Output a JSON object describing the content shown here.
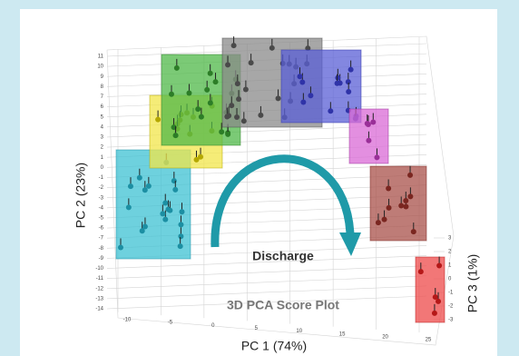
{
  "chart_data": {
    "type": "scatter3d",
    "title": "3D PCA Score Plot",
    "annotation": "Discharge",
    "xlabel": "PC 1 (74%)",
    "ylabel": "PC 2 (23%)",
    "zlabel": "PC 3 (1%)",
    "xlim": [
      -10,
      25
    ],
    "xticks": [
      -10,
      -5,
      0,
      5,
      10,
      15,
      20,
      25
    ],
    "ylim": [
      -14,
      11
    ],
    "yticks": [
      11,
      10,
      9,
      8,
      7,
      6,
      5,
      4,
      3,
      2,
      1,
      0,
      -1,
      -2,
      -3,
      -4,
      -5,
      -6,
      -7,
      -8,
      -9,
      -10,
      -11,
      -12,
      -13,
      -14
    ],
    "zlim": [
      -3,
      3
    ],
    "zticks": [
      3,
      2,
      1,
      0,
      -1,
      -2,
      -3
    ]
  }
}
